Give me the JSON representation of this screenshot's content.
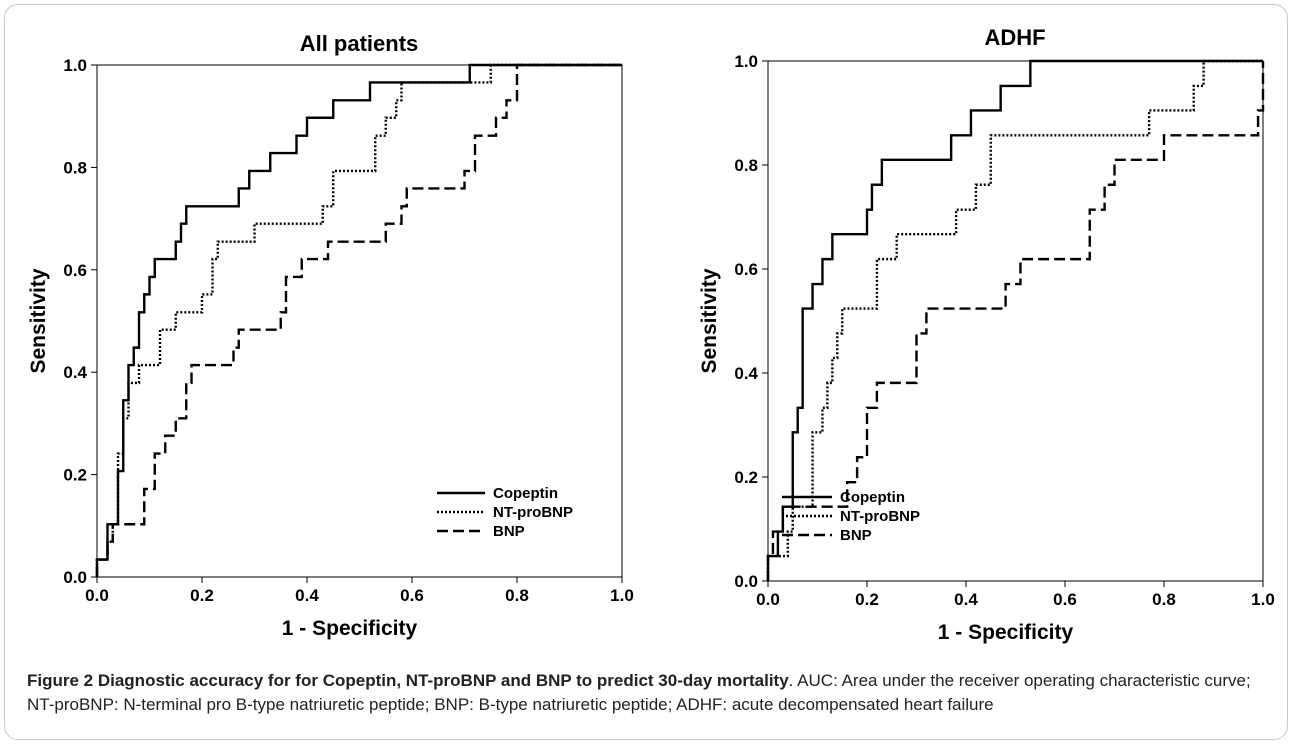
{
  "chart_data": [
    {
      "type": "line",
      "title": "All patients",
      "xlabel": "1 - Specificity",
      "ylabel": "Sensitivity",
      "xlim": [
        0,
        1
      ],
      "ylim": [
        0,
        1
      ],
      "x_ticks": [
        "0.0",
        "0.2",
        "0.4",
        "0.6",
        "0.8",
        "1.0"
      ],
      "y_ticks": [
        "0.0",
        "0.2",
        "0.4",
        "0.6",
        "0.8",
        "1.0"
      ],
      "grid": false,
      "legend": "bottom-right",
      "series": [
        {
          "name": "Copeptin",
          "style": "solid",
          "points": [
            [
              0,
              0
            ],
            [
              0,
              0.034
            ],
            [
              0.02,
              0.034
            ],
            [
              0.02,
              0.103
            ],
            [
              0.04,
              0.103
            ],
            [
              0.04,
              0.207
            ],
            [
              0.05,
              0.207
            ],
            [
              0.05,
              0.345
            ],
            [
              0.06,
              0.345
            ],
            [
              0.06,
              0.414
            ],
            [
              0.07,
              0.414
            ],
            [
              0.07,
              0.448
            ],
            [
              0.08,
              0.448
            ],
            [
              0.08,
              0.517
            ],
            [
              0.09,
              0.517
            ],
            [
              0.09,
              0.552
            ],
            [
              0.1,
              0.552
            ],
            [
              0.1,
              0.586
            ],
            [
              0.11,
              0.586
            ],
            [
              0.11,
              0.621
            ],
            [
              0.15,
              0.621
            ],
            [
              0.15,
              0.655
            ],
            [
              0.16,
              0.655
            ],
            [
              0.16,
              0.69
            ],
            [
              0.17,
              0.69
            ],
            [
              0.17,
              0.724
            ],
            [
              0.27,
              0.724
            ],
            [
              0.27,
              0.759
            ],
            [
              0.29,
              0.759
            ],
            [
              0.29,
              0.793
            ],
            [
              0.33,
              0.793
            ],
            [
              0.33,
              0.828
            ],
            [
              0.38,
              0.828
            ],
            [
              0.38,
              0.862
            ],
            [
              0.4,
              0.862
            ],
            [
              0.4,
              0.897
            ],
            [
              0.45,
              0.897
            ],
            [
              0.45,
              0.931
            ],
            [
              0.52,
              0.931
            ],
            [
              0.52,
              0.966
            ],
            [
              0.71,
              0.966
            ],
            [
              0.71,
              1.0
            ],
            [
              1.0,
              1.0
            ]
          ]
        },
        {
          "name": "NT-proBNP",
          "style": "dotted",
          "points": [
            [
              0,
              0
            ],
            [
              0,
              0.034
            ],
            [
              0.02,
              0.034
            ],
            [
              0.02,
              0.069
            ],
            [
              0.03,
              0.069
            ],
            [
              0.03,
              0.103
            ],
            [
              0.04,
              0.103
            ],
            [
              0.04,
              0.241
            ],
            [
              0.05,
              0.241
            ],
            [
              0.05,
              0.31
            ],
            [
              0.06,
              0.31
            ],
            [
              0.06,
              0.379
            ],
            [
              0.08,
              0.379
            ],
            [
              0.08,
              0.414
            ],
            [
              0.12,
              0.414
            ],
            [
              0.12,
              0.483
            ],
            [
              0.15,
              0.483
            ],
            [
              0.15,
              0.517
            ],
            [
              0.2,
              0.517
            ],
            [
              0.2,
              0.552
            ],
            [
              0.22,
              0.552
            ],
            [
              0.22,
              0.621
            ],
            [
              0.23,
              0.621
            ],
            [
              0.23,
              0.655
            ],
            [
              0.3,
              0.655
            ],
            [
              0.3,
              0.69
            ],
            [
              0.43,
              0.69
            ],
            [
              0.43,
              0.724
            ],
            [
              0.45,
              0.724
            ],
            [
              0.45,
              0.793
            ],
            [
              0.53,
              0.793
            ],
            [
              0.53,
              0.862
            ],
            [
              0.55,
              0.862
            ],
            [
              0.55,
              0.897
            ],
            [
              0.57,
              0.897
            ],
            [
              0.57,
              0.931
            ],
            [
              0.58,
              0.931
            ],
            [
              0.58,
              0.966
            ],
            [
              0.75,
              0.966
            ],
            [
              0.75,
              1.0
            ],
            [
              1.0,
              1.0
            ]
          ]
        },
        {
          "name": "BNP",
          "style": "dashed",
          "points": [
            [
              0,
              0
            ],
            [
              0,
              0.034
            ],
            [
              0.02,
              0.034
            ],
            [
              0.02,
              0.069
            ],
            [
              0.03,
              0.069
            ],
            [
              0.03,
              0.103
            ],
            [
              0.09,
              0.103
            ],
            [
              0.09,
              0.172
            ],
            [
              0.11,
              0.172
            ],
            [
              0.11,
              0.241
            ],
            [
              0.13,
              0.241
            ],
            [
              0.13,
              0.276
            ],
            [
              0.15,
              0.276
            ],
            [
              0.15,
              0.31
            ],
            [
              0.17,
              0.31
            ],
            [
              0.17,
              0.379
            ],
            [
              0.18,
              0.379
            ],
            [
              0.18,
              0.414
            ],
            [
              0.26,
              0.414
            ],
            [
              0.26,
              0.448
            ],
            [
              0.27,
              0.448
            ],
            [
              0.27,
              0.483
            ],
            [
              0.35,
              0.483
            ],
            [
              0.35,
              0.517
            ],
            [
              0.36,
              0.517
            ],
            [
              0.36,
              0.586
            ],
            [
              0.39,
              0.586
            ],
            [
              0.39,
              0.621
            ],
            [
              0.44,
              0.621
            ],
            [
              0.44,
              0.655
            ],
            [
              0.55,
              0.655
            ],
            [
              0.55,
              0.69
            ],
            [
              0.58,
              0.69
            ],
            [
              0.58,
              0.724
            ],
            [
              0.59,
              0.724
            ],
            [
              0.59,
              0.759
            ],
            [
              0.7,
              0.759
            ],
            [
              0.7,
              0.793
            ],
            [
              0.72,
              0.793
            ],
            [
              0.72,
              0.862
            ],
            [
              0.76,
              0.862
            ],
            [
              0.76,
              0.897
            ],
            [
              0.78,
              0.897
            ],
            [
              0.78,
              0.931
            ],
            [
              0.8,
              0.931
            ],
            [
              0.8,
              1.0
            ],
            [
              1.0,
              1.0
            ]
          ]
        }
      ]
    },
    {
      "type": "line",
      "title": "ADHF",
      "xlabel": "1 - Specificity",
      "ylabel": "Sensitivity",
      "xlim": [
        0,
        1
      ],
      "ylim": [
        0,
        1
      ],
      "x_ticks": [
        "0.0",
        "0.2",
        "0.4",
        "0.6",
        "0.8",
        "1.0"
      ],
      "y_ticks": [
        "0.0",
        "0.2",
        "0.4",
        "0.6",
        "0.8",
        "1.0"
      ],
      "grid": false,
      "legend": "bottom-left",
      "series": [
        {
          "name": "Copeptin",
          "style": "solid",
          "points": [
            [
              0,
              0
            ],
            [
              0,
              0.048
            ],
            [
              0.02,
              0.048
            ],
            [
              0.02,
              0.095
            ],
            [
              0.03,
              0.095
            ],
            [
              0.03,
              0.143
            ],
            [
              0.05,
              0.143
            ],
            [
              0.05,
              0.286
            ],
            [
              0.06,
              0.286
            ],
            [
              0.06,
              0.333
            ],
            [
              0.07,
              0.333
            ],
            [
              0.07,
              0.524
            ],
            [
              0.09,
              0.524
            ],
            [
              0.09,
              0.571
            ],
            [
              0.11,
              0.571
            ],
            [
              0.11,
              0.619
            ],
            [
              0.13,
              0.619
            ],
            [
              0.13,
              0.667
            ],
            [
              0.2,
              0.667
            ],
            [
              0.2,
              0.714
            ],
            [
              0.21,
              0.714
            ],
            [
              0.21,
              0.762
            ],
            [
              0.23,
              0.762
            ],
            [
              0.23,
              0.81
            ],
            [
              0.37,
              0.81
            ],
            [
              0.37,
              0.857
            ],
            [
              0.41,
              0.857
            ],
            [
              0.41,
              0.905
            ],
            [
              0.47,
              0.905
            ],
            [
              0.47,
              0.952
            ],
            [
              0.53,
              0.952
            ],
            [
              0.53,
              1.0
            ],
            [
              1.0,
              1.0
            ]
          ]
        },
        {
          "name": "NT-proBNP",
          "style": "dotted",
          "points": [
            [
              0,
              0
            ],
            [
              0,
              0.048
            ],
            [
              0.04,
              0.048
            ],
            [
              0.04,
              0.095
            ],
            [
              0.05,
              0.095
            ],
            [
              0.05,
              0.143
            ],
            [
              0.09,
              0.143
            ],
            [
              0.09,
              0.286
            ],
            [
              0.11,
              0.286
            ],
            [
              0.11,
              0.333
            ],
            [
              0.12,
              0.333
            ],
            [
              0.12,
              0.381
            ],
            [
              0.13,
              0.381
            ],
            [
              0.13,
              0.429
            ],
            [
              0.14,
              0.429
            ],
            [
              0.14,
              0.476
            ],
            [
              0.15,
              0.476
            ],
            [
              0.15,
              0.524
            ],
            [
              0.22,
              0.524
            ],
            [
              0.22,
              0.619
            ],
            [
              0.26,
              0.619
            ],
            [
              0.26,
              0.667
            ],
            [
              0.38,
              0.667
            ],
            [
              0.38,
              0.714
            ],
            [
              0.42,
              0.714
            ],
            [
              0.42,
              0.762
            ],
            [
              0.45,
              0.762
            ],
            [
              0.45,
              0.857
            ],
            [
              0.77,
              0.857
            ],
            [
              0.77,
              0.905
            ],
            [
              0.86,
              0.905
            ],
            [
              0.86,
              0.952
            ],
            [
              0.88,
              0.952
            ],
            [
              0.88,
              1.0
            ],
            [
              1.0,
              1.0
            ]
          ]
        },
        {
          "name": "BNP",
          "style": "dashed",
          "points": [
            [
              0,
              0
            ],
            [
              0,
              0.048
            ],
            [
              0.01,
              0.048
            ],
            [
              0.01,
              0.095
            ],
            [
              0.03,
              0.095
            ],
            [
              0.03,
              0.143
            ],
            [
              0.16,
              0.143
            ],
            [
              0.16,
              0.19
            ],
            [
              0.18,
              0.19
            ],
            [
              0.18,
              0.238
            ],
            [
              0.2,
              0.238
            ],
            [
              0.2,
              0.333
            ],
            [
              0.22,
              0.333
            ],
            [
              0.22,
              0.381
            ],
            [
              0.3,
              0.381
            ],
            [
              0.3,
              0.476
            ],
            [
              0.32,
              0.476
            ],
            [
              0.32,
              0.524
            ],
            [
              0.48,
              0.524
            ],
            [
              0.48,
              0.571
            ],
            [
              0.51,
              0.571
            ],
            [
              0.51,
              0.619
            ],
            [
              0.65,
              0.619
            ],
            [
              0.65,
              0.714
            ],
            [
              0.68,
              0.714
            ],
            [
              0.68,
              0.762
            ],
            [
              0.7,
              0.762
            ],
            [
              0.7,
              0.81
            ],
            [
              0.8,
              0.81
            ],
            [
              0.8,
              0.857
            ],
            [
              0.99,
              0.857
            ],
            [
              0.99,
              0.905
            ],
            [
              1.0,
              0.905
            ],
            [
              1.0,
              1.0
            ]
          ]
        }
      ]
    }
  ],
  "caption": {
    "title": "Figure 2 Diagnostic accuracy for for Copeptin, NT-proBNP and BNP to predict 30-day mortality",
    "text": ". AUC: Area under the receiver operating characteristic curve; NT-proBNP: N-terminal pro B-type natriuretic peptide; BNP: B-type natriuretic peptide; ADHF: acute decompensated heart failure"
  }
}
